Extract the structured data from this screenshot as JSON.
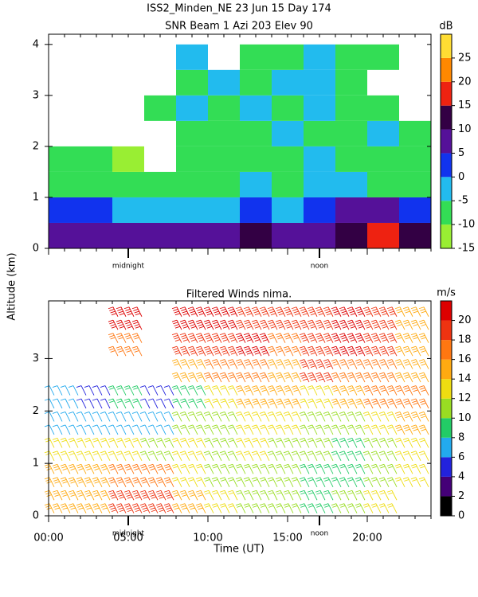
{
  "chart_data": [
    {
      "type": "heatmap",
      "title": "ISS2_Minden_NE  23 Jun 15 Day 174",
      "subtitle": "SNR Beam 1 Azi 203 Elev 90",
      "y_label": "Altitude (km)",
      "xlim": [
        0,
        24
      ],
      "xticks": [
        0,
        5,
        10,
        15,
        20
      ],
      "ylim": [
        0,
        4.2
      ],
      "yticks": [
        0,
        1,
        2,
        3,
        4
      ],
      "annotations": [
        {
          "text": "midnight",
          "x": 5
        },
        {
          "text": "noon",
          "x": 17
        }
      ],
      "x": [
        1,
        3,
        5,
        7,
        9,
        11,
        13,
        15,
        17,
        19,
        21,
        23
      ],
      "y": [
        0.25,
        0.75,
        1.25,
        1.75,
        2.25,
        2.75,
        3.25,
        3.75
      ],
      "values": [
        [
          5,
          5,
          5,
          5,
          5,
          5,
          10,
          5,
          5,
          10,
          15,
          10
        ],
        [
          0,
          0,
          -5,
          -5,
          -5,
          -5,
          0,
          -5,
          0,
          5,
          5,
          0
        ],
        [
          -10,
          -10,
          -10,
          -10,
          -10,
          -10,
          -5,
          -10,
          -5,
          -5,
          -10,
          -10
        ],
        [
          -10,
          -10,
          -15,
          null,
          -10,
          -10,
          -10,
          -10,
          -5,
          -10,
          -10,
          -10
        ],
        [
          null,
          null,
          null,
          null,
          -10,
          -10,
          -10,
          -5,
          -10,
          -10,
          -5,
          -10
        ],
        [
          null,
          null,
          null,
          -10,
          -5,
          -10,
          -5,
          -10,
          -5,
          -10,
          -10,
          null
        ],
        [
          null,
          null,
          null,
          null,
          -10,
          -5,
          -10,
          -5,
          -5,
          -10,
          null,
          null
        ],
        [
          null,
          null,
          null,
          null,
          -5,
          null,
          -10,
          -10,
          -5,
          -10,
          -10,
          null
        ]
      ],
      "colorbar": {
        "label": "dB",
        "bounds": [
          -15,
          -10,
          -5,
          0,
          5,
          10,
          15,
          20,
          25,
          30
        ],
        "colors": [
          "#99ee33",
          "#33dd55",
          "#22bbee",
          "#1133ee",
          "#551199",
          "#330044",
          "#ee2211",
          "#ff8800",
          "#ffdd33"
        ],
        "ticks": [
          -15,
          -10,
          -5,
          0,
          5,
          10,
          15,
          20,
          25
        ]
      }
    },
    {
      "type": "barbs",
      "title": "Filtered Winds nima.",
      "x_label": "Time (UT)",
      "xlim": [
        0,
        24
      ],
      "xticks": [
        {
          "value": 0,
          "label": "00:00"
        },
        {
          "value": 5,
          "label": "05:00"
        },
        {
          "value": 10,
          "label": "10:00"
        },
        {
          "value": 15,
          "label": "15:00"
        },
        {
          "value": 20,
          "label": "20:00"
        }
      ],
      "ylim": [
        0,
        4.1
      ],
      "yticks": [
        0,
        1,
        2,
        3
      ],
      "annotations": [
        {
          "text": "midnight",
          "x": 5
        },
        {
          "text": "noon",
          "x": 17
        }
      ],
      "x": [
        1,
        3,
        5,
        7,
        9,
        11,
        13,
        15,
        17,
        19,
        21,
        23
      ],
      "y": [
        0.25,
        0.75,
        1.25,
        1.75,
        2.25,
        2.75,
        3.25,
        3.75
      ],
      "values": [
        [
          14,
          14,
          18,
          18,
          14,
          12,
          10,
          10,
          8,
          10,
          12,
          null
        ],
        [
          14,
          14,
          16,
          16,
          12,
          10,
          10,
          10,
          8,
          8,
          10,
          12
        ],
        [
          12,
          12,
          12,
          10,
          12,
          10,
          12,
          10,
          10,
          8,
          10,
          12
        ],
        [
          6,
          6,
          6,
          6,
          10,
          10,
          12,
          12,
          10,
          10,
          12,
          14
        ],
        [
          6,
          4,
          8,
          4,
          8,
          12,
          14,
          14,
          12,
          14,
          16,
          16
        ],
        [
          null,
          null,
          null,
          null,
          14,
          16,
          16,
          14,
          18,
          16,
          16,
          14
        ],
        [
          null,
          null,
          16,
          null,
          18,
          18,
          20,
          16,
          18,
          20,
          18,
          14
        ],
        [
          null,
          null,
          20,
          null,
          20,
          20,
          18,
          18,
          18,
          20,
          18,
          14
        ]
      ],
      "colorbar": {
        "label": "m/s",
        "bounds": [
          0,
          2,
          4,
          6,
          8,
          10,
          12,
          14,
          16,
          18,
          20,
          22
        ],
        "colors": [
          "#000000",
          "#440077",
          "#2222dd",
          "#22aaee",
          "#22cc66",
          "#99dd22",
          "#eedd11",
          "#ffaa11",
          "#ff7711",
          "#ee3311",
          "#dd0000"
        ],
        "ticks": [
          0,
          2,
          4,
          6,
          8,
          10,
          12,
          14,
          16,
          18,
          20
        ]
      }
    }
  ]
}
